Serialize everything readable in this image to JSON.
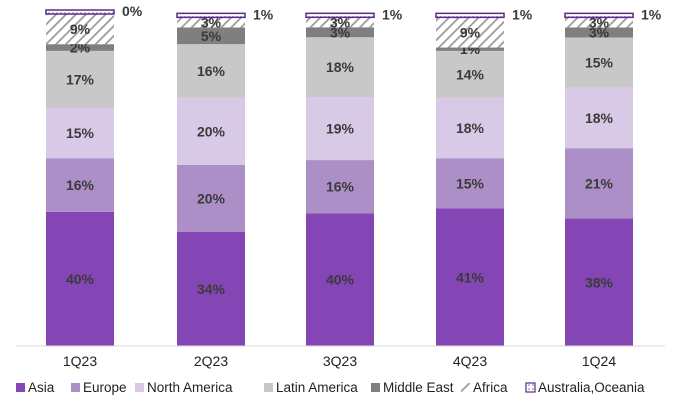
{
  "chart_data": {
    "type": "bar",
    "stacked": true,
    "title": "",
    "xlabel": "",
    "ylabel": "",
    "ylim": [
      0,
      100
    ],
    "grid": false,
    "legend_position": "bottom",
    "categories": [
      "1Q23",
      "2Q23",
      "3Q23",
      "4Q23",
      "1Q24"
    ],
    "series": [
      {
        "name": "Asia",
        "values": [
          40,
          34,
          40,
          41,
          38
        ],
        "labels": [
          "40%",
          "34%",
          "40%",
          "41%",
          "38%"
        ],
        "color": "#8446b4",
        "pattern": "solid"
      },
      {
        "name": "Europe",
        "values": [
          16,
          20,
          16,
          15,
          21
        ],
        "labels": [
          "16%",
          "20%",
          "16%",
          "15%",
          "21%"
        ],
        "color": "#ad8fc7",
        "pattern": "solid"
      },
      {
        "name": "North America",
        "values": [
          15,
          20,
          19,
          18,
          18
        ],
        "labels": [
          "15%",
          "20%",
          "19%",
          "18%",
          "18%"
        ],
        "color": "#d8c9e6",
        "pattern": "solid"
      },
      {
        "name": "Latin America",
        "values": [
          17,
          16,
          18,
          14,
          15
        ],
        "labels": [
          "17%",
          "16%",
          "18%",
          "14%",
          "15%"
        ],
        "color": "#c8c8c8",
        "pattern": "solid"
      },
      {
        "name": "Middle East",
        "values": [
          2,
          5,
          3,
          1,
          3
        ],
        "labels": [
          "2%",
          "5%",
          "3%",
          "1%",
          "3%"
        ],
        "color": "#7f7f7f",
        "pattern": "solid"
      },
      {
        "name": "Africa",
        "values": [
          9,
          3,
          3,
          9,
          3
        ],
        "labels": [
          "9%",
          "3%",
          "3%",
          "9%",
          "3%"
        ],
        "color": "#9a9a9a",
        "pattern": "hatch"
      },
      {
        "name": "Australia,Oceania",
        "values": [
          0,
          1,
          1,
          1,
          1
        ],
        "labels": [
          "0%",
          "1%",
          "1%",
          "1%",
          "1%"
        ],
        "color": "#5b2a86",
        "pattern": "outline"
      }
    ]
  }
}
